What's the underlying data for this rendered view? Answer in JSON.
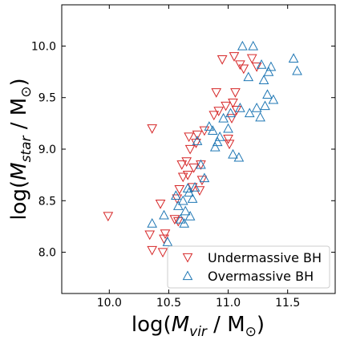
{
  "colors": {
    "undermassive": "#d62728",
    "overmassive": "#1f77b4",
    "axis": "#000000",
    "legend_border": "#cccccc"
  },
  "chart_data": {
    "type": "scatter",
    "title": "",
    "xlabel_prefix": "log(",
    "xlabel_var": "M",
    "xlabel_sub": "vir",
    "xlabel_suffix": " / M",
    "xlabel_odot": "⊙",
    "xlabel_close": ")",
    "ylabel_prefix": "log(",
    "ylabel_var": "M",
    "ylabel_sub": "star",
    "ylabel_suffix": " / M",
    "ylabel_odot": "⊙",
    "ylabel_close": ")",
    "xlim": [
      9.6,
      11.9
    ],
    "ylim": [
      7.6,
      10.4
    ],
    "xticks": [
      "10.0",
      "10.5",
      "11.0",
      "11.5"
    ],
    "yticks": [
      "8.0",
      "8.5",
      "9.0",
      "9.5",
      "10.0"
    ],
    "grid": false,
    "legend_position": "bottom-right",
    "series": [
      {
        "name": "Undermassive BH",
        "marker": "triangle_down",
        "points": [
          [
            9.99,
            8.35
          ],
          [
            10.36,
            9.2
          ],
          [
            10.43,
            8.47
          ],
          [
            10.34,
            8.17
          ],
          [
            10.36,
            8.02
          ],
          [
            10.45,
            8.0
          ],
          [
            10.46,
            8.13
          ],
          [
            10.47,
            8.18
          ],
          [
            10.55,
            8.32
          ],
          [
            10.58,
            8.3
          ],
          [
            10.57,
            8.52
          ],
          [
            10.59,
            8.61
          ],
          [
            10.61,
            8.85
          ],
          [
            10.62,
            8.73
          ],
          [
            10.65,
            8.88
          ],
          [
            10.66,
            8.75
          ],
          [
            10.67,
            9.12
          ],
          [
            10.68,
            9.0
          ],
          [
            10.7,
            8.63
          ],
          [
            10.71,
            8.82
          ],
          [
            10.73,
            9.06
          ],
          [
            10.74,
            9.14
          ],
          [
            10.76,
            8.6
          ],
          [
            10.77,
            8.85
          ],
          [
            10.78,
            8.7
          ],
          [
            10.8,
            9.18
          ],
          [
            10.88,
            9.33
          ],
          [
            10.9,
            9.55
          ],
          [
            10.92,
            9.37
          ],
          [
            10.95,
            9.87
          ],
          [
            10.98,
            9.42
          ],
          [
            11.0,
            9.1
          ],
          [
            11.01,
            9.05
          ],
          [
            11.03,
            9.3
          ],
          [
            11.04,
            9.45
          ],
          [
            11.05,
            9.9
          ],
          [
            11.06,
            9.55
          ],
          [
            11.07,
            9.38
          ],
          [
            11.1,
            9.82
          ],
          [
            11.13,
            9.78
          ],
          [
            11.2,
            9.88
          ],
          [
            11.24,
            9.8
          ]
        ]
      },
      {
        "name": "Overmassive BH",
        "marker": "triangle_up",
        "points": [
          [
            10.36,
            8.28
          ],
          [
            10.46,
            8.36
          ],
          [
            10.49,
            8.1
          ],
          [
            10.56,
            8.55
          ],
          [
            10.58,
            8.45
          ],
          [
            10.6,
            8.32
          ],
          [
            10.62,
            8.5
          ],
          [
            10.63,
            8.28
          ],
          [
            10.64,
            8.4
          ],
          [
            10.66,
            8.62
          ],
          [
            10.67,
            8.58
          ],
          [
            10.68,
            8.35
          ],
          [
            10.7,
            8.52
          ],
          [
            10.72,
            8.63
          ],
          [
            10.74,
            9.08
          ],
          [
            10.77,
            8.85
          ],
          [
            10.8,
            8.72
          ],
          [
            10.84,
            9.22
          ],
          [
            10.87,
            9.18
          ],
          [
            10.89,
            9.02
          ],
          [
            10.91,
            9.07
          ],
          [
            10.93,
            9.12
          ],
          [
            10.96,
            9.3
          ],
          [
            11.0,
            9.2
          ],
          [
            11.02,
            9.35
          ],
          [
            11.04,
            8.95
          ],
          [
            11.09,
            8.92
          ],
          [
            11.1,
            9.4
          ],
          [
            11.12,
            10.0
          ],
          [
            11.17,
            9.7
          ],
          [
            11.18,
            9.35
          ],
          [
            11.21,
            10.0
          ],
          [
            11.24,
            9.4
          ],
          [
            11.27,
            9.31
          ],
          [
            11.28,
            9.82
          ],
          [
            11.3,
            9.67
          ],
          [
            11.31,
            9.42
          ],
          [
            11.33,
            9.53
          ],
          [
            11.34,
            9.75
          ],
          [
            11.36,
            9.8
          ],
          [
            11.38,
            9.48
          ],
          [
            11.55,
            9.88
          ],
          [
            11.58,
            9.76
          ]
        ]
      }
    ]
  }
}
